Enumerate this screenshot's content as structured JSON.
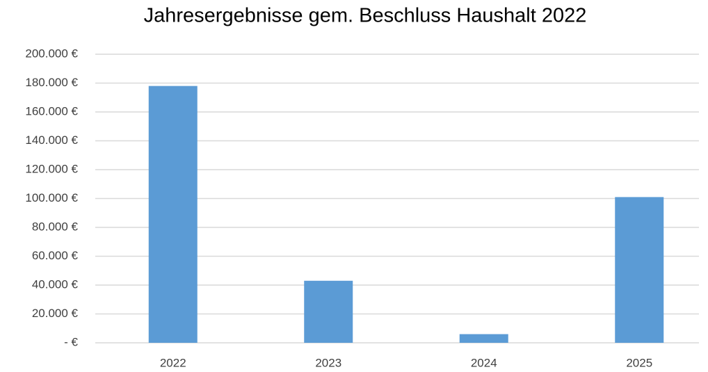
{
  "chart_data": {
    "type": "bar",
    "title": "Jahresergebnisse gem. Beschluss Haushalt 2022",
    "categories": [
      "2022",
      "2023",
      "2024",
      "2025"
    ],
    "values": [
      178000,
      43000,
      6000,
      101000
    ],
    "color": "#5b9bd5",
    "ylim": [
      0,
      200000
    ],
    "yticks": [
      {
        "value": 0,
        "label": "-   €"
      },
      {
        "value": 20000,
        "label": "20.000 €"
      },
      {
        "value": 40000,
        "label": "40.000 €"
      },
      {
        "value": 60000,
        "label": "60.000 €"
      },
      {
        "value": 80000,
        "label": "80.000 €"
      },
      {
        "value": 100000,
        "label": "100.000 €"
      },
      {
        "value": 120000,
        "label": "120.000 €"
      },
      {
        "value": 140000,
        "label": "140.000 €"
      },
      {
        "value": 160000,
        "label": "160.000 €"
      },
      {
        "value": 180000,
        "label": "180.000 €"
      },
      {
        "value": 200000,
        "label": "200.000 €"
      }
    ],
    "grid": true
  }
}
